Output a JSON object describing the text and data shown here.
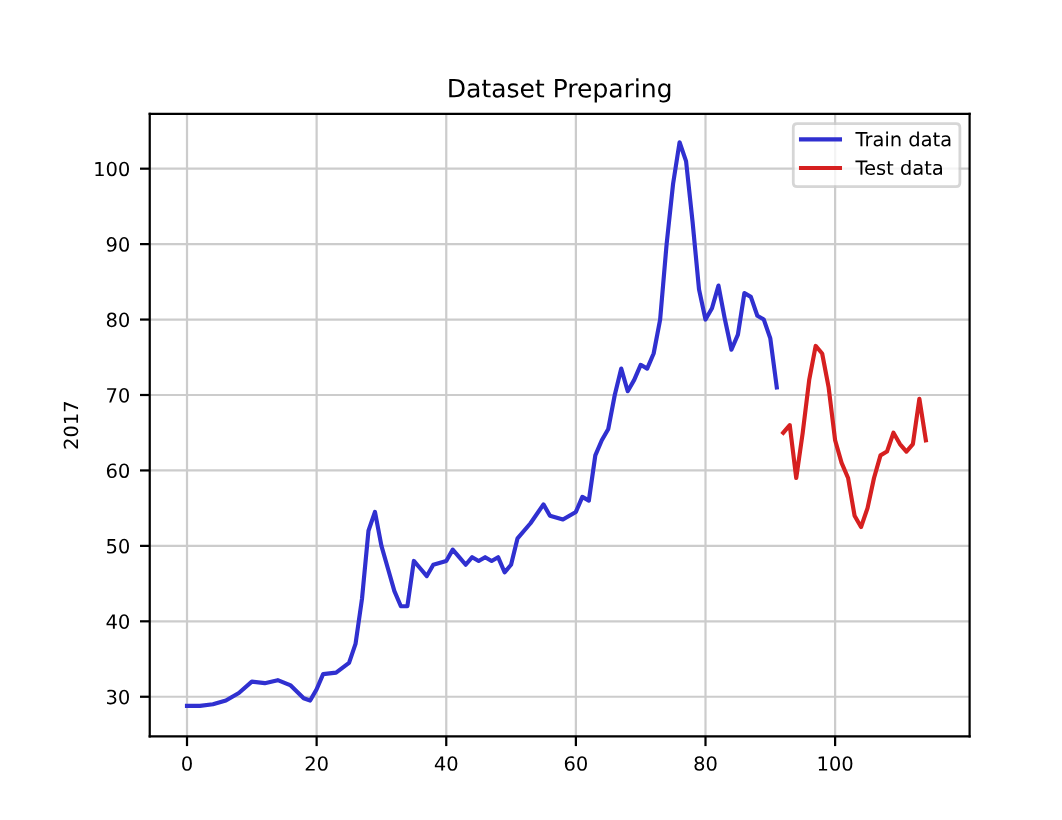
{
  "chart_data": {
    "type": "line",
    "title": "Dataset Preparing",
    "ylabel": "2017",
    "xlim": [
      -5.75,
      120.75
    ],
    "xticks": [
      0,
      20,
      40,
      60,
      80,
      100
    ],
    "ylim": [
      24.75,
      107.25
    ],
    "yticks": [
      30,
      40,
      50,
      60,
      70,
      80,
      90,
      100
    ],
    "grid": true,
    "legend": "top right",
    "series": [
      {
        "name": "Train data",
        "color": "#3030d0",
        "x": [
          0,
          2,
          4,
          6,
          8,
          10,
          12,
          14,
          16,
          18,
          19,
          20,
          21,
          23,
          25,
          26,
          27,
          28,
          29,
          30,
          31,
          32,
          33,
          34,
          35,
          36,
          37,
          38,
          40,
          41,
          42,
          43,
          44,
          45,
          46,
          47,
          48,
          49,
          50,
          51,
          53,
          55,
          56,
          58,
          60,
          61,
          62,
          63,
          64,
          65,
          66,
          67,
          68,
          69,
          70,
          71,
          72,
          73,
          74,
          75,
          76,
          77,
          78,
          79,
          80,
          81,
          82,
          83,
          84,
          85,
          86,
          87,
          88,
          89,
          90,
          91
        ],
        "values": [
          28.8,
          28.8,
          29,
          29.5,
          30.5,
          32,
          31.8,
          32.2,
          31.5,
          29.8,
          29.5,
          31,
          33,
          33.2,
          34.5,
          37,
          43,
          52,
          54.5,
          50,
          47,
          44,
          42,
          42,
          48,
          47,
          46,
          47.5,
          48,
          49.5,
          48.5,
          47.5,
          48.5,
          48,
          48.5,
          48,
          48.5,
          46.5,
          47.5,
          51,
          53,
          55.5,
          54,
          53.5,
          54.5,
          56.5,
          56,
          62,
          64,
          65.5,
          70,
          73.5,
          70.5,
          72,
          74,
          73.5,
          75.5,
          80,
          90,
          98,
          103.5,
          101,
          93,
          84,
          80,
          81.5,
          84.5,
          80,
          76,
          78,
          83.5,
          83,
          80.5,
          80,
          77.5,
          71
        ]
      },
      {
        "name": "Test data",
        "color": "#d62020",
        "x": [
          92,
          93,
          94,
          95,
          96,
          97,
          98,
          99,
          100,
          101,
          102,
          103,
          104,
          105,
          106,
          107,
          108,
          109,
          110,
          111,
          112,
          113,
          114
        ],
        "values": [
          65,
          66,
          59,
          65,
          72,
          76.5,
          75.5,
          71,
          64,
          61,
          59,
          54,
          52.5,
          55,
          59,
          62,
          62.5,
          65,
          63.5,
          62.5,
          63.5,
          69.5,
          64
        ]
      }
    ]
  }
}
